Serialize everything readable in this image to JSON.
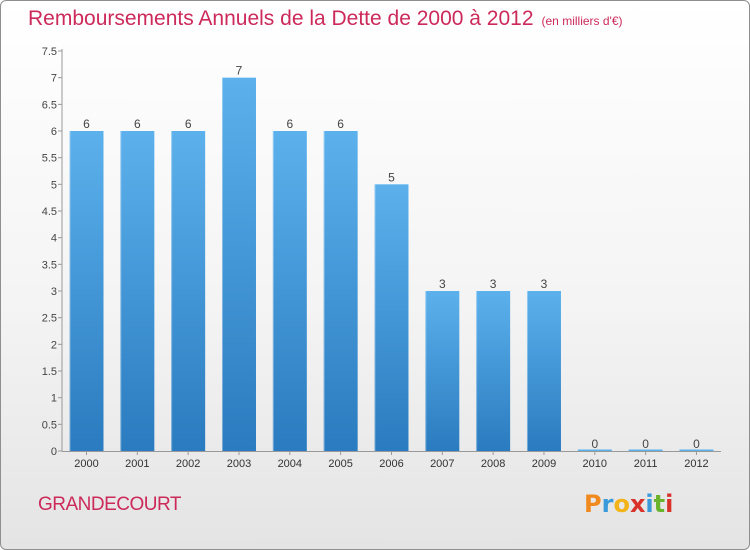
{
  "header": {
    "title": "Remboursements Annuels de la Dette de 2000 à 2012",
    "subtitle": "(en milliers d'€)"
  },
  "commune": "GRANDECOURT",
  "logo": {
    "letters": [
      "P",
      "r",
      "o",
      "x",
      "i",
      "t",
      "i"
    ],
    "colors": [
      "#f08a1e",
      "#3a9ad9",
      "#f2b418",
      "#d9322a",
      "#3a9ad9",
      "#6ab42d",
      "#d9322a"
    ]
  },
  "colors": {
    "bar_top": "#5cb1ec",
    "bar_bottom": "#2a7bbf",
    "title": "#cc2a5a"
  },
  "chart_data": {
    "type": "bar",
    "title": "Remboursements Annuels de la Dette de 2000 à 2012",
    "subtitle": "(en milliers d'€)",
    "xlabel": "",
    "ylabel": "",
    "categories": [
      "2000",
      "2001",
      "2002",
      "2003",
      "2004",
      "2005",
      "2006",
      "2007",
      "2008",
      "2009",
      "2010",
      "2011",
      "2012"
    ],
    "values": [
      6,
      6,
      6,
      7,
      6,
      6,
      5,
      3,
      3,
      3,
      0,
      0,
      0
    ],
    "value_labels": [
      "6",
      "6",
      "6",
      "7",
      "6",
      "6",
      "5",
      "3",
      "3",
      "3",
      "0",
      "0",
      "0"
    ],
    "ylim": [
      0,
      7.5
    ],
    "yticks": [
      0,
      0.5,
      1,
      1.5,
      2,
      2.5,
      3,
      3.5,
      4,
      4.5,
      5,
      5.5,
      6,
      6.5,
      7,
      7.5
    ],
    "ytick_labels": [
      "0",
      "0.5",
      "1",
      "1.5",
      "2",
      "2.5",
      "3",
      "3.5",
      "4",
      "4.5",
      "5",
      "5.5",
      "6",
      "6.5",
      "7",
      "7.5"
    ],
    "grid": false,
    "legend": "none"
  }
}
